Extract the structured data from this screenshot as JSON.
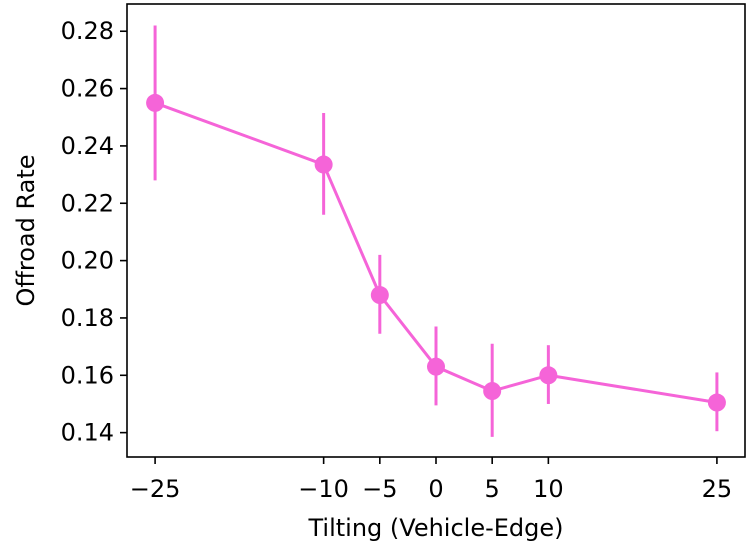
{
  "chart_data": {
    "type": "line",
    "title": "",
    "xlabel": "Tilting (Vehicle-Edge)",
    "ylabel": "Offroad Rate",
    "x": [
      -25,
      -10,
      -5,
      0,
      5,
      10,
      25
    ],
    "x_tick_labels": [
      "−25",
      "−10",
      "−5",
      "0",
      "5",
      "10",
      "25"
    ],
    "y_ticks": [
      0.14,
      0.16,
      0.18,
      0.2,
      0.22,
      0.24,
      0.26,
      0.28
    ],
    "y_tick_labels": [
      "0.14",
      "0.16",
      "0.18",
      "0.20",
      "0.22",
      "0.24",
      "0.26",
      "0.28"
    ],
    "xlim": [
      -27.5,
      27.5
    ],
    "ylim": [
      0.1315,
      0.2895
    ],
    "grid": false,
    "series": [
      {
        "values": [
          0.255,
          0.2335,
          0.188,
          0.163,
          0.1545,
          0.16,
          0.1505
        ],
        "error_low": [
          0.228,
          0.216,
          0.1745,
          0.1495,
          0.1385,
          0.15,
          0.1405
        ],
        "error_high": [
          0.282,
          0.2515,
          0.202,
          0.177,
          0.171,
          0.1705,
          0.161
        ],
        "color": "#f564d8"
      }
    ]
  }
}
